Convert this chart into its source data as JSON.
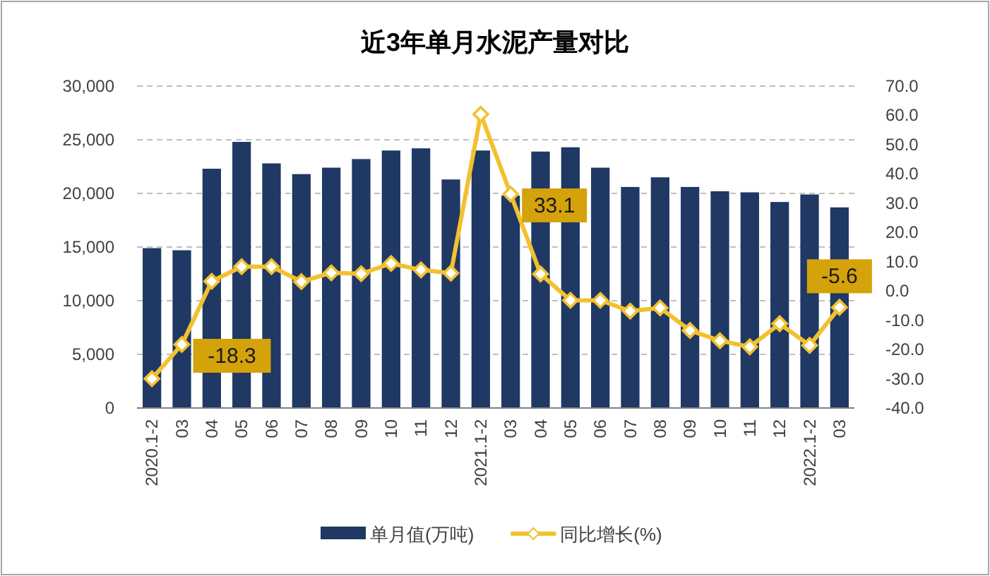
{
  "chart_data": {
    "type": "bar",
    "title": "近3年单月水泥产量对比",
    "categories": [
      "2020.1-2",
      "03",
      "04",
      "05",
      "06",
      "07",
      "08",
      "09",
      "10",
      "11",
      "12",
      "2021.1-2",
      "03",
      "04",
      "05",
      "06",
      "07",
      "08",
      "09",
      "10",
      "11",
      "12",
      "2022.1-2",
      "03"
    ],
    "series": [
      {
        "name": "单月值(万吨)",
        "color": "#1f3864",
        "values": [
          14900,
          14700,
          22300,
          24800,
          22800,
          21800,
          22400,
          23200,
          24000,
          24200,
          21300,
          24000,
          19800,
          23900,
          24300,
          22400,
          20600,
          21500,
          20600,
          20200,
          20100,
          19200,
          19900,
          18700
        ]
      },
      {
        "name": "同比增长(%)",
        "type": "line",
        "axis": "y2",
        "color": "#f2c12e",
        "marker": "diamond",
        "values": [
          -30.0,
          -18.3,
          3.3,
          8.3,
          8.3,
          3.2,
          6.2,
          5.9,
          9.4,
          7.2,
          6.1,
          60.4,
          33.1,
          5.8,
          -3.2,
          -3.2,
          -6.9,
          -5.8,
          -13.5,
          -17.0,
          -19.1,
          -11.2,
          -18.6,
          -5.6
        ],
        "value_labels": [
          null,
          "-18.3",
          null,
          null,
          null,
          null,
          null,
          null,
          null,
          null,
          null,
          null,
          "33.1",
          null,
          null,
          null,
          null,
          null,
          null,
          null,
          null,
          null,
          null,
          "-5.6"
        ]
      }
    ],
    "ylim": [
      0,
      30000
    ],
    "yticks": [
      {
        "value": 0,
        "label": "0"
      },
      {
        "value": 5000,
        "label": "5,000"
      },
      {
        "value": 10000,
        "label": "10,000"
      },
      {
        "value": 15000,
        "label": "15,000"
      },
      {
        "value": 20000,
        "label": "20,000"
      },
      {
        "value": 25000,
        "label": "25,000"
      },
      {
        "value": 30000,
        "label": "30,000"
      }
    ],
    "y2lim": [
      -40,
      70
    ],
    "y2ticks": [
      {
        "value": -40,
        "label": "-40.0"
      },
      {
        "value": -30,
        "label": "-30.0"
      },
      {
        "value": -20,
        "label": "-20.0"
      },
      {
        "value": -10,
        "label": "-10.0"
      },
      {
        "value": 0,
        "label": "0.0"
      },
      {
        "value": 10,
        "label": "10.0"
      },
      {
        "value": 20,
        "label": "20.0"
      },
      {
        "value": 30,
        "label": "30.0"
      },
      {
        "value": 40,
        "label": "40.0"
      },
      {
        "value": 50,
        "label": "50.0"
      },
      {
        "value": 60,
        "label": "60.0"
      },
      {
        "value": 70,
        "label": "70.0"
      }
    ],
    "grid": "y",
    "legend": "bottom"
  }
}
